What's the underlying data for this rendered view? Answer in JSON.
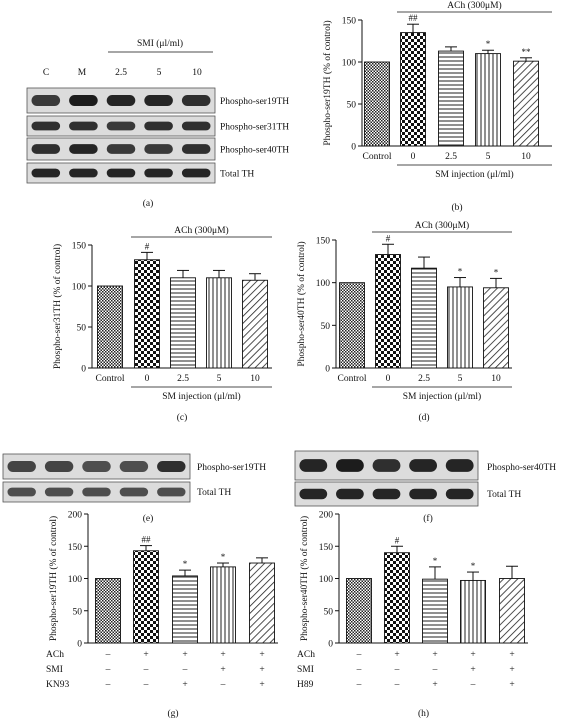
{
  "blot_a": {
    "header": "SMI (μl/ml)",
    "lanes": [
      "C",
      "M",
      "2.5",
      "5",
      "10"
    ],
    "rows": [
      "Phospho-ser19TH",
      "Phospho-ser31TH",
      "Phospho-ser40TH",
      "Total TH"
    ],
    "panel": "(a)"
  },
  "blot_e": {
    "rows": [
      "Phospho-ser19TH",
      "Total TH"
    ],
    "panel": "(e)"
  },
  "blot_f": {
    "rows": [
      "Phospho-ser40TH",
      "Total TH"
    ],
    "panel": "(f)"
  },
  "chart_data": [
    {
      "id": "b",
      "type": "bar",
      "panel": "(b)",
      "ylabel": "Phospho-ser19TH (% of control)",
      "ylim": [
        0,
        150
      ],
      "yticks": [
        0,
        50,
        100,
        150
      ],
      "categories": [
        "Control",
        "0",
        "2.5",
        "5",
        "10"
      ],
      "values": [
        100,
        135,
        113,
        110,
        101
      ],
      "errors": [
        0,
        10,
        5,
        4,
        4
      ],
      "sig": [
        "",
        "##",
        "",
        "*",
        "**"
      ],
      "top_label": "ACh (300μM)",
      "bottom_label": "SM injection (μl/ml)"
    },
    {
      "id": "c",
      "type": "bar",
      "panel": "(c)",
      "ylabel": "Phospho-ser31TH (% of control)",
      "ylim": [
        0,
        150
      ],
      "yticks": [
        0,
        50,
        100,
        150
      ],
      "categories": [
        "Control",
        "0",
        "2.5",
        "5",
        "10"
      ],
      "values": [
        100,
        132,
        110,
        110,
        107
      ],
      "errors": [
        0,
        9,
        9,
        9,
        8
      ],
      "sig": [
        "",
        "#",
        "",
        "",
        ""
      ],
      "top_label": "ACh (300μM)",
      "bottom_label": "SM injection (μl/ml)"
    },
    {
      "id": "d",
      "type": "bar",
      "panel": "(d)",
      "ylabel": "Phospho-ser40TH (% of control)",
      "ylim": [
        0,
        150
      ],
      "yticks": [
        0,
        50,
        100,
        150
      ],
      "categories": [
        "Control",
        "0",
        "2.5",
        "5",
        "10"
      ],
      "values": [
        100,
        133,
        117,
        95,
        94
      ],
      "errors": [
        0,
        12,
        13,
        11,
        11
      ],
      "sig": [
        "",
        "#",
        "",
        "*",
        "*"
      ],
      "top_label": "ACh (300μM)",
      "bottom_label": "SM injection (μl/ml)"
    },
    {
      "id": "g",
      "type": "bar",
      "panel": "(g)",
      "ylabel": "Phospho-ser19TH (% of control)",
      "ylim": [
        0,
        200
      ],
      "yticks": [
        0,
        50,
        100,
        150,
        200
      ],
      "values": [
        100,
        143,
        104,
        118,
        124
      ],
      "errors": [
        0,
        8,
        9,
        6,
        8
      ],
      "sig": [
        "",
        "##",
        "*",
        "*",
        ""
      ],
      "treatment_rows": [
        {
          "name": "ACh",
          "signs": [
            "–",
            "+",
            "+",
            "+",
            "+"
          ]
        },
        {
          "name": "SMI",
          "signs": [
            "–",
            "–",
            "–",
            "+",
            "+"
          ]
        },
        {
          "name": "KN93",
          "signs": [
            "–",
            "–",
            "+",
            "–",
            "+"
          ]
        }
      ]
    },
    {
      "id": "h",
      "type": "bar",
      "panel": "(h)",
      "ylabel": "Phospho-ser40TH (% of control)",
      "ylim": [
        0,
        200
      ],
      "yticks": [
        0,
        50,
        100,
        150,
        200
      ],
      "values": [
        100,
        140,
        99,
        97,
        100
      ],
      "errors": [
        0,
        10,
        19,
        13,
        19
      ],
      "sig": [
        "",
        "#",
        "*",
        "*",
        ""
      ],
      "treatment_rows": [
        {
          "name": "ACh",
          "signs": [
            "–",
            "+",
            "+",
            "+",
            "+"
          ]
        },
        {
          "name": "SMI",
          "signs": [
            "–",
            "–",
            "–",
            "+",
            "+"
          ]
        },
        {
          "name": "H89",
          "signs": [
            "–",
            "–",
            "+",
            "–",
            "+"
          ]
        }
      ]
    }
  ]
}
